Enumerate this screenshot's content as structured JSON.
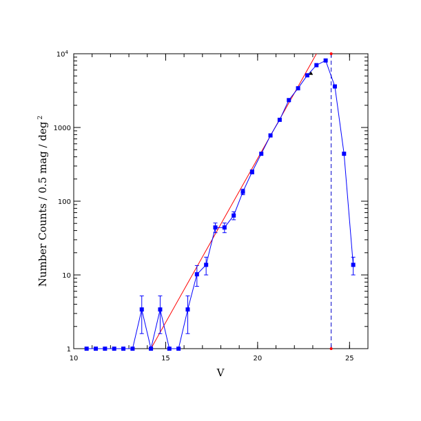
{
  "chart_data": {
    "type": "line",
    "xlabel": "V",
    "ylabel": "Number Counts / 0.5 mag / deg",
    "ylabel_superscript": "2",
    "xlim": [
      10,
      26
    ],
    "ylim": [
      1,
      10000
    ],
    "yscale": "log",
    "grid": false,
    "x_ticks": [
      {
        "value": 10,
        "label": "10"
      },
      {
        "value": 15,
        "label": "15"
      },
      {
        "value": 20,
        "label": "20"
      },
      {
        "value": 25,
        "label": "25"
      }
    ],
    "y_ticks": [
      {
        "value": 1,
        "label": "1"
      },
      {
        "value": 10,
        "label": "10"
      },
      {
        "value": 100,
        "label": "100"
      },
      {
        "value": 1000,
        "label": "1000"
      },
      {
        "value": 10000,
        "label": "10",
        "sup": "4"
      }
    ],
    "series": [
      {
        "color": "#0000ff",
        "marker": "square",
        "points": [
          {
            "x": 10.7,
            "y": 1
          },
          {
            "x": 11.2,
            "y": 1
          },
          {
            "x": 11.7,
            "y": 1
          },
          {
            "x": 12.2,
            "y": 1
          },
          {
            "x": 12.7,
            "y": 1
          },
          {
            "x": 13.2,
            "y": 1
          },
          {
            "x": 13.7,
            "y": 3.4,
            "err_lo": 1.8,
            "err_hi": 1.8
          },
          {
            "x": 14.2,
            "y": 1
          },
          {
            "x": 14.7,
            "y": 3.4,
            "err_lo": 1.8,
            "err_hi": 1.8
          },
          {
            "x": 15.2,
            "y": 1
          },
          {
            "x": 15.7,
            "y": 1
          },
          {
            "x": 16.2,
            "y": 3.4,
            "err_lo": 1.8,
            "err_hi": 1.8
          },
          {
            "x": 16.7,
            "y": 10.2,
            "err_lo": 3.2,
            "err_hi": 3.2
          },
          {
            "x": 17.2,
            "y": 13.7,
            "err_lo": 3.7,
            "err_hi": 3.7
          },
          {
            "x": 17.7,
            "y": 44,
            "err_lo": 6.6,
            "err_hi": 6.6
          },
          {
            "x": 18.2,
            "y": 44,
            "err_lo": 6.6,
            "err_hi": 6.6
          },
          {
            "x": 18.7,
            "y": 64,
            "err_lo": 8,
            "err_hi": 8
          },
          {
            "x": 19.2,
            "y": 134,
            "err_lo": 11.6,
            "err_hi": 11.6
          },
          {
            "x": 19.7,
            "y": 250,
            "err_lo": 15.8,
            "err_hi": 15.8
          },
          {
            "x": 20.2,
            "y": 440
          },
          {
            "x": 20.7,
            "y": 780
          },
          {
            "x": 21.2,
            "y": 1270
          },
          {
            "x": 21.7,
            "y": 2350
          },
          {
            "x": 22.2,
            "y": 3400
          },
          {
            "x": 22.7,
            "y": 5100
          },
          {
            "x": 23.2,
            "y": 7000
          },
          {
            "x": 23.7,
            "y": 8100
          },
          {
            "x": 24.2,
            "y": 3600
          },
          {
            "x": 24.7,
            "y": 440
          },
          {
            "x": 25.2,
            "y": 13.7,
            "err_lo": 3.7,
            "err_hi": 3.7
          }
        ]
      }
    ],
    "fit_line": {
      "color": "#ff0000",
      "x0": 14.2,
      "y0": 1,
      "x1": 23.2,
      "y1": 10000
    },
    "marker_point": {
      "x": 22.9,
      "y": 5400,
      "color": "#000000",
      "marker": "triangle"
    },
    "vline": {
      "x": 24.0,
      "color": "#0000cc",
      "style": "dashed",
      "end_marker_color": "#ff0000"
    }
  }
}
